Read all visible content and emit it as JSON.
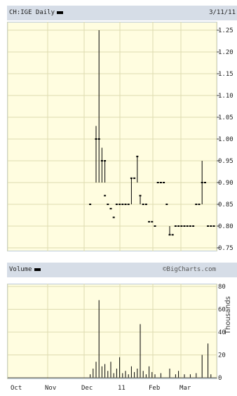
{
  "header": {
    "title": "CH:IGE Daily",
    "date": "3/11/11"
  },
  "volume_header": {
    "title": "Volume",
    "source": "©BigCharts.com"
  },
  "volume_axis_unit": "Thousands",
  "colors": {
    "panel_bg": "#fffde0",
    "grid": "#dedbb0",
    "header_bg": "#d6dde7",
    "ink": "#000000"
  },
  "chart_data": [
    {
      "type": "line",
      "title": "CH:IGE Daily",
      "ylim": [
        0.75,
        1.25
      ],
      "ticks": [
        "1.25",
        "1.20",
        "1.15",
        "1.10",
        "1.05",
        "1.00",
        "0.95",
        "0.90",
        "0.85",
        "0.80",
        "0.75"
      ],
      "x_labels": [
        "Oct",
        "Nov",
        "Dec",
        "11",
        "Feb",
        "Mar"
      ],
      "grid": true,
      "points": [
        {
          "i": 30,
          "y": 1.0
        },
        {
          "i": 31,
          "y": 1.0
        },
        {
          "i": 32,
          "y": 0.95
        },
        {
          "i": 33,
          "y": 0.95
        },
        {
          "i": 28,
          "y": 0.85
        },
        {
          "i": 33,
          "y": 0.87
        },
        {
          "i": 34,
          "y": 0.85
        },
        {
          "i": 35,
          "y": 0.84
        },
        {
          "i": 36,
          "y": 0.82
        },
        {
          "i": 37,
          "y": 0.85
        },
        {
          "i": 38,
          "y": 0.85
        },
        {
          "i": 39,
          "y": 0.85
        },
        {
          "i": 40,
          "y": 0.85
        },
        {
          "i": 41,
          "y": 0.85
        },
        {
          "i": 42,
          "y": 0.91
        },
        {
          "i": 43,
          "y": 0.91
        },
        {
          "i": 44,
          "y": 0.96
        },
        {
          "i": 45,
          "y": 0.87
        },
        {
          "i": 46,
          "y": 0.85
        },
        {
          "i": 47,
          "y": 0.85
        },
        {
          "i": 48,
          "y": 0.81
        },
        {
          "i": 49,
          "y": 0.81
        },
        {
          "i": 50,
          "y": 0.8
        },
        {
          "i": 51,
          "y": 0.9
        },
        {
          "i": 52,
          "y": 0.9
        },
        {
          "i": 53,
          "y": 0.9
        },
        {
          "i": 54,
          "y": 0.85
        },
        {
          "i": 55,
          "y": 0.78
        },
        {
          "i": 56,
          "y": 0.78
        },
        {
          "i": 57,
          "y": 0.8
        },
        {
          "i": 58,
          "y": 0.8
        },
        {
          "i": 59,
          "y": 0.8
        },
        {
          "i": 60,
          "y": 0.8
        },
        {
          "i": 61,
          "y": 0.8
        },
        {
          "i": 62,
          "y": 0.8
        },
        {
          "i": 63,
          "y": 0.8
        },
        {
          "i": 64,
          "y": 0.85
        },
        {
          "i": 65,
          "y": 0.85
        },
        {
          "i": 66,
          "y": 0.9
        },
        {
          "i": 67,
          "y": 0.9
        },
        {
          "i": 68,
          "y": 0.8
        },
        {
          "i": 69,
          "y": 0.8
        },
        {
          "i": 70,
          "y": 0.8
        }
      ],
      "ranges": [
        {
          "i": 31,
          "low": 0.9,
          "high": 1.25
        },
        {
          "i": 30,
          "low": 0.9,
          "high": 1.03
        },
        {
          "i": 32,
          "low": 0.9,
          "high": 0.98
        },
        {
          "i": 33,
          "low": 0.9,
          "high": 0.95
        },
        {
          "i": 42,
          "low": 0.85,
          "high": 0.91
        },
        {
          "i": 44,
          "low": 0.9,
          "high": 0.96
        },
        {
          "i": 45,
          "low": 0.85,
          "high": 0.87
        },
        {
          "i": 55,
          "low": 0.78,
          "high": 0.8
        },
        {
          "i": 66,
          "low": 0.85,
          "high": 0.95
        }
      ]
    },
    {
      "type": "bar",
      "title": "Volume",
      "ylim": [
        0,
        80
      ],
      "ticks": [
        "80",
        "60",
        "40",
        "20",
        "0"
      ],
      "ylabel": "Thousands",
      "bars": [
        {
          "i": 28,
          "v": 3
        },
        {
          "i": 29,
          "v": 8
        },
        {
          "i": 30,
          "v": 14
        },
        {
          "i": 31,
          "v": 68
        },
        {
          "i": 32,
          "v": 10
        },
        {
          "i": 33,
          "v": 12
        },
        {
          "i": 34,
          "v": 6
        },
        {
          "i": 35,
          "v": 14
        },
        {
          "i": 36,
          "v": 4
        },
        {
          "i": 37,
          "v": 8
        },
        {
          "i": 38,
          "v": 18
        },
        {
          "i": 39,
          "v": 4
        },
        {
          "i": 40,
          "v": 6
        },
        {
          "i": 41,
          "v": 3
        },
        {
          "i": 42,
          "v": 10
        },
        {
          "i": 43,
          "v": 5
        },
        {
          "i": 44,
          "v": 8
        },
        {
          "i": 45,
          "v": 47
        },
        {
          "i": 46,
          "v": 6
        },
        {
          "i": 47,
          "v": 3
        },
        {
          "i": 48,
          "v": 10
        },
        {
          "i": 49,
          "v": 5
        },
        {
          "i": 50,
          "v": 3
        },
        {
          "i": 52,
          "v": 4
        },
        {
          "i": 55,
          "v": 8
        },
        {
          "i": 57,
          "v": 3
        },
        {
          "i": 58,
          "v": 6
        },
        {
          "i": 60,
          "v": 3
        },
        {
          "i": 62,
          "v": 3
        },
        {
          "i": 64,
          "v": 4
        },
        {
          "i": 66,
          "v": 20
        },
        {
          "i": 68,
          "v": 30
        },
        {
          "i": 69,
          "v": 3
        }
      ]
    }
  ]
}
